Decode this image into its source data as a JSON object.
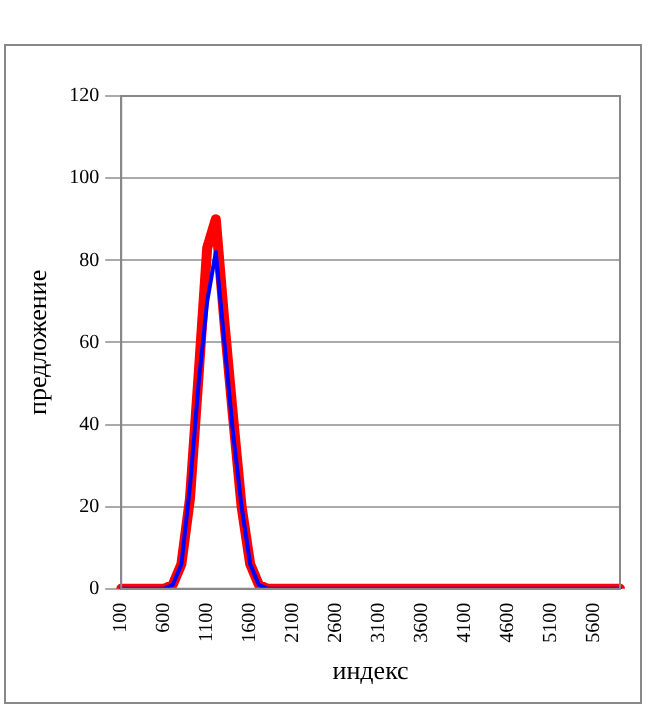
{
  "chart_data": {
    "type": "line",
    "xlabel": "индекс",
    "ylabel": "предложение",
    "categories": [
      "100",
      null,
      null,
      null,
      null,
      "600",
      null,
      null,
      null,
      null,
      "1100",
      null,
      null,
      null,
      null,
      "1600",
      null,
      null,
      null,
      null,
      "2100",
      null,
      null,
      null,
      null,
      "2600",
      null,
      null,
      null,
      null,
      "3100",
      null,
      null,
      null,
      null,
      "3600",
      null,
      null,
      null,
      null,
      "4100",
      null,
      null,
      null,
      null,
      "4600",
      null,
      null,
      null,
      null,
      "5100",
      null,
      null,
      null,
      null,
      "5600",
      null,
      null,
      null
    ],
    "series": [
      {
        "color": "#0000ff",
        "values": [
          0,
          0,
          0,
          0,
          0,
          0,
          1,
          6,
          25,
          50,
          70,
          82,
          60,
          38,
          20,
          6,
          1,
          0,
          0,
          0,
          0,
          0,
          0,
          0,
          0,
          0,
          0,
          0,
          0,
          0,
          0,
          0,
          0,
          0,
          0,
          0,
          0,
          0,
          0,
          0,
          0,
          0,
          0,
          0,
          0,
          0,
          0,
          0,
          0,
          0,
          0,
          0,
          0,
          0,
          0,
          0,
          0,
          0,
          0
        ]
      },
      {
        "color": "#ff0000",
        "values": [
          0,
          0,
          0,
          0,
          0,
          0,
          1,
          6,
          22,
          52,
          83,
          90,
          65,
          42,
          20,
          6,
          1,
          0,
          0,
          0,
          0,
          0,
          0,
          0,
          0,
          0,
          0,
          0,
          0,
          0,
          0,
          0,
          0,
          0,
          0,
          0,
          0,
          0,
          0,
          0,
          0,
          0,
          0,
          0,
          0,
          0,
          0,
          0,
          0,
          0,
          0,
          0,
          0,
          0,
          0,
          0,
          0,
          0,
          0
        ]
      }
    ],
    "ylim": [
      0,
      120
    ],
    "yticks": [
      0,
      20,
      40,
      60,
      80,
      100,
      120
    ],
    "grid": "y",
    "marker": "none",
    "line_style": "solid"
  }
}
